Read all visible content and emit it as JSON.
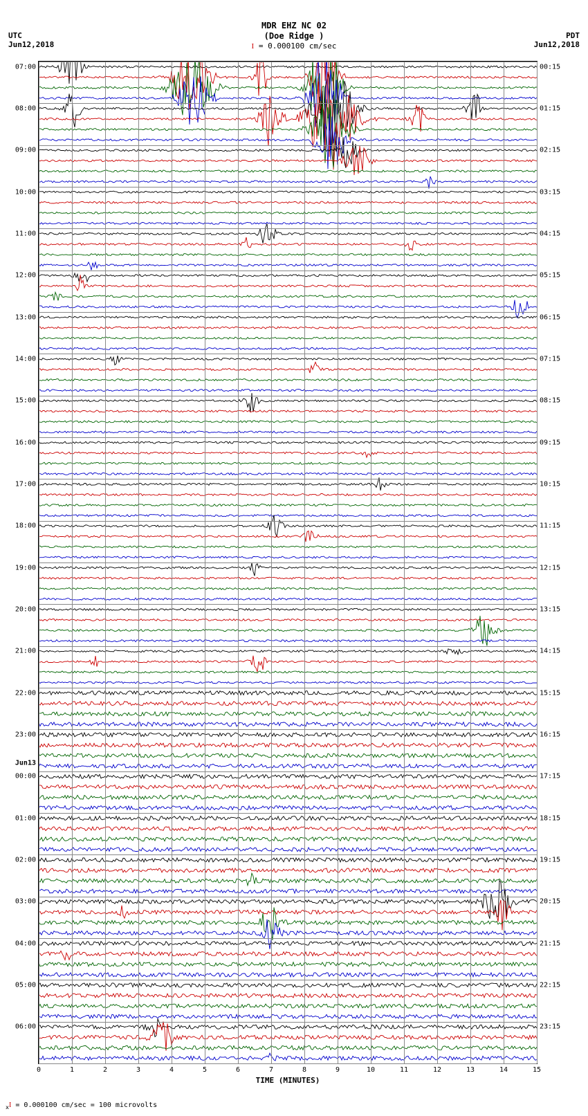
{
  "header": {
    "line1": "MDR EHZ NC 02",
    "line2": "(Doe Ridge )",
    "scale_bar": "= 0.000100 cm/sec"
  },
  "tz_left": "UTC",
  "date_left": "Jun12,2018",
  "tz_right": "PDT",
  "date_right": "Jun12,2018",
  "date_change_label": "Jun13",
  "footer_text": "= 0.000100 cm/sec =    100 microvolts",
  "x_axis": {
    "title": "TIME (MINUTES)",
    "ticks": [
      "0",
      "1",
      "2",
      "3",
      "4",
      "5",
      "6",
      "7",
      "8",
      "9",
      "10",
      "11",
      "12",
      "13",
      "14",
      "15"
    ]
  },
  "plot": {
    "background_color": "#ffffff",
    "grid_color": "#a0a0a0",
    "border_color": "#000000",
    "n_traces": 96,
    "minutes_per_line": 15,
    "trace_colors_cycle": [
      "#000000",
      "#cc0000",
      "#006400",
      "#0000cc"
    ],
    "noise_amplitude_base": 1.5,
    "noise_amplitude_high_start_trace": 60,
    "noise_amplitude_high": 3.0
  },
  "left_labels": [
    {
      "trace": 0,
      "text": "07:00"
    },
    {
      "trace": 4,
      "text": "08:00"
    },
    {
      "trace": 8,
      "text": "09:00"
    },
    {
      "trace": 12,
      "text": "10:00"
    },
    {
      "trace": 16,
      "text": "11:00"
    },
    {
      "trace": 20,
      "text": "12:00"
    },
    {
      "trace": 24,
      "text": "13:00"
    },
    {
      "trace": 28,
      "text": "14:00"
    },
    {
      "trace": 32,
      "text": "15:00"
    },
    {
      "trace": 36,
      "text": "16:00"
    },
    {
      "trace": 40,
      "text": "17:00"
    },
    {
      "trace": 44,
      "text": "18:00"
    },
    {
      "trace": 48,
      "text": "19:00"
    },
    {
      "trace": 52,
      "text": "20:00"
    },
    {
      "trace": 56,
      "text": "21:00"
    },
    {
      "trace": 60,
      "text": "22:00"
    },
    {
      "trace": 64,
      "text": "23:00"
    },
    {
      "trace": 68,
      "text": "00:00"
    },
    {
      "trace": 72,
      "text": "01:00"
    },
    {
      "trace": 76,
      "text": "02:00"
    },
    {
      "trace": 80,
      "text": "03:00"
    },
    {
      "trace": 84,
      "text": "04:00"
    },
    {
      "trace": 88,
      "text": "05:00"
    },
    {
      "trace": 92,
      "text": "06:00"
    }
  ],
  "right_labels": [
    {
      "trace": 0,
      "text": "00:15"
    },
    {
      "trace": 4,
      "text": "01:15"
    },
    {
      "trace": 8,
      "text": "02:15"
    },
    {
      "trace": 12,
      "text": "03:15"
    },
    {
      "trace": 16,
      "text": "04:15"
    },
    {
      "trace": 20,
      "text": "05:15"
    },
    {
      "trace": 24,
      "text": "06:15"
    },
    {
      "trace": 28,
      "text": "07:15"
    },
    {
      "trace": 32,
      "text": "08:15"
    },
    {
      "trace": 36,
      "text": "09:15"
    },
    {
      "trace": 40,
      "text": "10:15"
    },
    {
      "trace": 44,
      "text": "11:15"
    },
    {
      "trace": 48,
      "text": "12:15"
    },
    {
      "trace": 52,
      "text": "13:15"
    },
    {
      "trace": 56,
      "text": "14:15"
    },
    {
      "trace": 60,
      "text": "15:15"
    },
    {
      "trace": 64,
      "text": "16:15"
    },
    {
      "trace": 68,
      "text": "17:15"
    },
    {
      "trace": 72,
      "text": "18:15"
    },
    {
      "trace": 76,
      "text": "19:15"
    },
    {
      "trace": 80,
      "text": "20:15"
    },
    {
      "trace": 84,
      "text": "21:15"
    },
    {
      "trace": 88,
      "text": "22:15"
    },
    {
      "trace": 92,
      "text": "23:15"
    }
  ],
  "events": [
    {
      "trace": 0,
      "minute": 1.0,
      "amplitude": 40,
      "width": 0.4,
      "comment": "large_black_07:00"
    },
    {
      "trace": 1,
      "minute": 4.6,
      "amplitude": 60,
      "width": 0.7
    },
    {
      "trace": 2,
      "minute": 4.6,
      "amplitude": 50,
      "width": 0.8
    },
    {
      "trace": 3,
      "minute": 4.7,
      "amplitude": 45,
      "width": 0.6
    },
    {
      "trace": 1,
      "minute": 8.6,
      "amplitude": 80,
      "width": 0.5
    },
    {
      "trace": 2,
      "minute": 8.6,
      "amplitude": 90,
      "width": 0.6
    },
    {
      "trace": 3,
      "minute": 8.6,
      "amplitude": 85,
      "width": 0.6
    },
    {
      "trace": 4,
      "minute": 1.0,
      "amplitude": 35,
      "width": 0.3
    },
    {
      "trace": 4,
      "minute": 8.9,
      "amplitude": 70,
      "width": 0.8
    },
    {
      "trace": 5,
      "minute": 8.8,
      "amplitude": 75,
      "width": 1.0
    },
    {
      "trace": 5,
      "minute": 7.0,
      "amplitude": 50,
      "width": 0.4
    },
    {
      "trace": 6,
      "minute": 8.8,
      "amplitude": 60,
      "width": 0.7
    },
    {
      "trace": 7,
      "minute": 8.8,
      "amplitude": 45,
      "width": 0.6
    },
    {
      "trace": 1,
      "minute": 6.7,
      "amplitude": 30,
      "width": 0.3
    },
    {
      "trace": 4,
      "minute": 13.1,
      "amplitude": 30,
      "width": 0.3
    },
    {
      "trace": 5,
      "minute": 11.4,
      "amplitude": 25,
      "width": 0.3
    },
    {
      "trace": 8,
      "minute": 9.3,
      "amplitude": 30,
      "width": 0.4
    },
    {
      "trace": 9,
      "minute": 9.6,
      "amplitude": 25,
      "width": 0.5
    },
    {
      "trace": 11,
      "minute": 11.8,
      "amplitude": 10,
      "width": 0.2
    },
    {
      "trace": 16,
      "minute": 6.9,
      "amplitude": 25,
      "width": 0.3
    },
    {
      "trace": 17,
      "minute": 6.3,
      "amplitude": 20,
      "width": 0.2
    },
    {
      "trace": 17,
      "minute": 11.2,
      "amplitude": 15,
      "width": 0.2
    },
    {
      "trace": 19,
      "minute": 1.6,
      "amplitude": 12,
      "width": 0.2
    },
    {
      "trace": 20,
      "minute": 1.3,
      "amplitude": 18,
      "width": 0.3
    },
    {
      "trace": 21,
      "minute": 1.3,
      "amplitude": 20,
      "width": 0.2
    },
    {
      "trace": 22,
      "minute": 0.5,
      "amplitude": 15,
      "width": 0.2
    },
    {
      "trace": 23,
      "minute": 14.5,
      "amplitude": 20,
      "width": 0.3
    },
    {
      "trace": 28,
      "minute": 2.3,
      "amplitude": 12,
      "width": 0.2
    },
    {
      "trace": 29,
      "minute": 8.3,
      "amplitude": 12,
      "width": 0.2
    },
    {
      "trace": 32,
      "minute": 6.4,
      "amplitude": 18,
      "width": 0.3
    },
    {
      "trace": 37,
      "minute": 9.9,
      "amplitude": 10,
      "width": 0.2
    },
    {
      "trace": 40,
      "minute": 10.3,
      "amplitude": 12,
      "width": 0.2
    },
    {
      "trace": 44,
      "minute": 7.1,
      "amplitude": 20,
      "width": 0.3
    },
    {
      "trace": 45,
      "minute": 8.2,
      "amplitude": 15,
      "width": 0.3
    },
    {
      "trace": 48,
      "minute": 6.5,
      "amplitude": 12,
      "width": 0.2
    },
    {
      "trace": 54,
      "minute": 13.4,
      "amplitude": 25,
      "width": 0.4
    },
    {
      "trace": 56,
      "minute": 12.5,
      "amplitude": 10,
      "width": 0.3
    },
    {
      "trace": 57,
      "minute": 6.6,
      "amplitude": 18,
      "width": 0.3
    },
    {
      "trace": 57,
      "minute": 1.7,
      "amplitude": 10,
      "width": 0.2
    },
    {
      "trace": 78,
      "minute": 6.4,
      "amplitude": 12,
      "width": 0.2
    },
    {
      "trace": 80,
      "minute": 13.8,
      "amplitude": 40,
      "width": 0.5
    },
    {
      "trace": 81,
      "minute": 14.0,
      "amplitude": 25,
      "width": 0.3
    },
    {
      "trace": 82,
      "minute": 7.0,
      "amplitude": 30,
      "width": 0.4
    },
    {
      "trace": 83,
      "minute": 7.0,
      "amplitude": 25,
      "width": 0.3
    },
    {
      "trace": 81,
      "minute": 2.5,
      "amplitude": 12,
      "width": 0.2
    },
    {
      "trace": 85,
      "minute": 0.8,
      "amplitude": 12,
      "width": 0.2
    },
    {
      "trace": 92,
      "minute": 3.5,
      "amplitude": 15,
      "width": 0.3
    },
    {
      "trace": 93,
      "minute": 3.7,
      "amplitude": 30,
      "width": 0.4
    },
    {
      "trace": 95,
      "minute": 7.0,
      "amplitude": 12,
      "width": 0.2
    }
  ]
}
